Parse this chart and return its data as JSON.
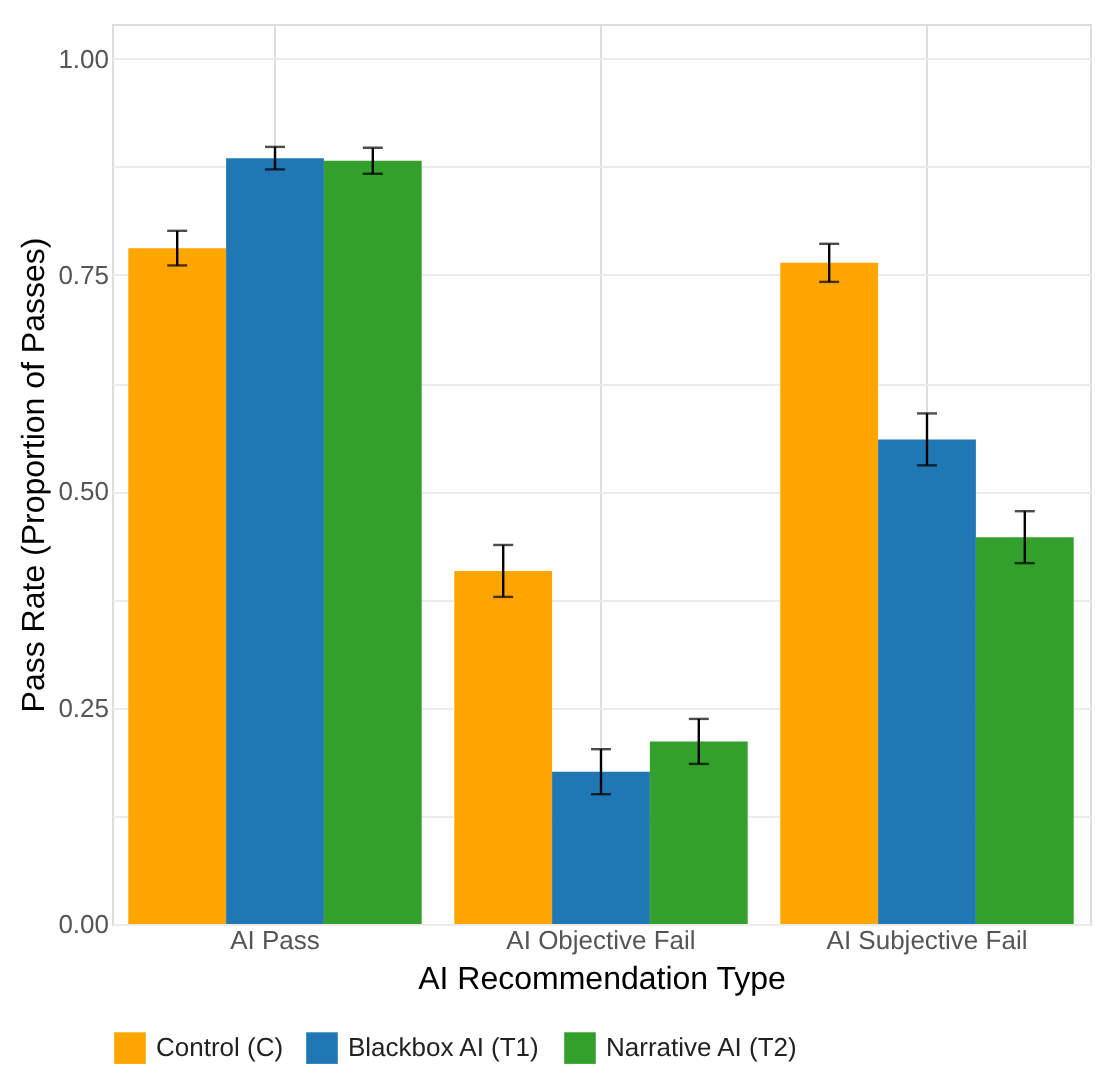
{
  "chart_data": {
    "type": "bar",
    "xlabel": "AI Recommendation Type",
    "ylabel": "Pass Rate (Proportion of Passes)",
    "categories": [
      "AI Pass",
      "AI Objective Fail",
      "AI Subjective Fail"
    ],
    "series": [
      {
        "name": "Control (C)",
        "color": "#ffa500",
        "values": [
          0.781,
          0.408,
          0.764
        ],
        "errors": [
          0.02,
          0.03,
          0.022
        ]
      },
      {
        "name": "Blackbox AI (T1)",
        "color": "#1f78b4",
        "values": [
          0.885,
          0.176,
          0.56
        ],
        "errors": [
          0.013,
          0.026,
          0.03
        ]
      },
      {
        "name": "Narrative AI (T2)",
        "color": "#33a02c",
        "values": [
          0.882,
          0.211,
          0.447
        ],
        "errors": [
          0.015,
          0.026,
          0.03
        ]
      }
    ],
    "ylim": [
      0,
      1.04
    ],
    "yticks": [
      {
        "value": 0,
        "label": "0.00"
      },
      {
        "value": 0.125,
        "label": null
      },
      0.25,
      {
        "value": 0.375,
        "label": null
      },
      {
        "value": 0.5,
        "label": "0.50"
      },
      {
        "value": 0.625,
        "label": null
      },
      0.75,
      {
        "value": 0.875,
        "label": null
      },
      {
        "value": 1,
        "label": "1.00"
      }
    ],
    "grid": true,
    "legend": "bottom"
  }
}
